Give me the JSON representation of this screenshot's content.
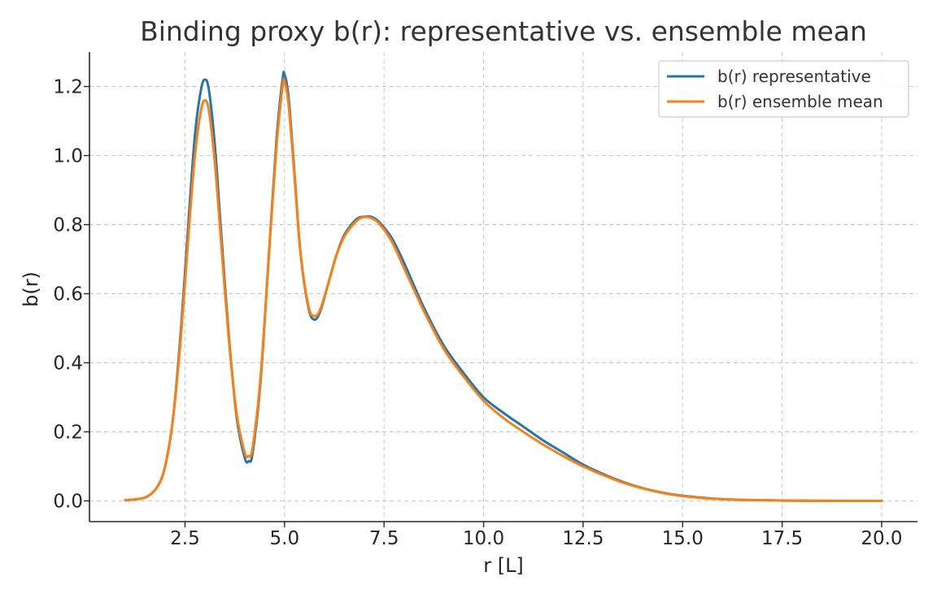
{
  "chart_data": {
    "type": "line",
    "title": "Binding proxy b(r): representative vs. ensemble mean",
    "xlabel": "r [L]",
    "ylabel": "b(r)",
    "xlim": [
      0.1,
      20.9
    ],
    "ylim": [
      -0.06,
      1.3
    ],
    "xticks": [
      2.5,
      5.0,
      7.5,
      10.0,
      12.5,
      15.0,
      17.5,
      20.0
    ],
    "xtick_labels": [
      "2.5",
      "5.0",
      "7.5",
      "10.0",
      "12.5",
      "15.0",
      "17.5",
      "20.0"
    ],
    "yticks": [
      0.0,
      0.2,
      0.4,
      0.6,
      0.8,
      1.0,
      1.2
    ],
    "ytick_labels": [
      "0.0",
      "0.2",
      "0.4",
      "0.6",
      "0.8",
      "1.0",
      "1.2"
    ],
    "grid": true,
    "grid_style": "dashed",
    "legend_position": "top-right",
    "series": [
      {
        "name": "b(r) representative",
        "color": "#1f77b4",
        "x": [
          1.0,
          1.5,
          1.8,
          2.0,
          2.2,
          2.4,
          2.6,
          2.75,
          2.9,
          3.0,
          3.1,
          3.25,
          3.4,
          3.6,
          3.8,
          4.0,
          4.1,
          4.2,
          4.4,
          4.6,
          4.8,
          4.95,
          5.0,
          5.1,
          5.25,
          5.4,
          5.6,
          5.75,
          5.9,
          6.1,
          6.3,
          6.5,
          6.8,
          7.0,
          7.2,
          7.4,
          7.7,
          8.0,
          8.5,
          9.0,
          9.5,
          10.0,
          10.5,
          11.0,
          11.5,
          12.0,
          12.5,
          13.0,
          13.5,
          14.0,
          14.5,
          15.0,
          15.5,
          16.0,
          16.5,
          17.0,
          17.5,
          18.0,
          19.0,
          20.0
        ],
        "y": [
          0.002,
          0.01,
          0.04,
          0.1,
          0.24,
          0.5,
          0.83,
          1.06,
          1.19,
          1.22,
          1.19,
          1.03,
          0.79,
          0.48,
          0.24,
          0.125,
          0.115,
          0.14,
          0.35,
          0.7,
          1.05,
          1.22,
          1.235,
          1.17,
          0.95,
          0.72,
          0.56,
          0.525,
          0.55,
          0.63,
          0.71,
          0.77,
          0.815,
          0.823,
          0.822,
          0.805,
          0.76,
          0.69,
          0.56,
          0.45,
          0.37,
          0.3,
          0.255,
          0.215,
          0.175,
          0.14,
          0.105,
          0.078,
          0.055,
          0.037,
          0.024,
          0.015,
          0.009,
          0.005,
          0.003,
          0.002,
          0.001,
          0.0005,
          0.0001,
          0.0
        ]
      },
      {
        "name": "b(r) ensemble mean",
        "color": "#ff7f0e",
        "x": [
          1.0,
          1.5,
          1.8,
          2.0,
          2.2,
          2.4,
          2.6,
          2.75,
          2.9,
          3.0,
          3.1,
          3.25,
          3.4,
          3.6,
          3.8,
          4.0,
          4.1,
          4.2,
          4.4,
          4.6,
          4.8,
          4.95,
          5.0,
          5.1,
          5.25,
          5.4,
          5.6,
          5.75,
          5.9,
          6.1,
          6.3,
          6.5,
          6.8,
          7.0,
          7.2,
          7.4,
          7.7,
          8.0,
          8.5,
          9.0,
          9.5,
          10.0,
          10.5,
          11.0,
          11.5,
          12.0,
          12.5,
          13.0,
          13.5,
          14.0,
          14.5,
          15.0,
          15.5,
          16.0,
          16.5,
          17.0,
          17.5,
          18.0,
          19.0,
          20.0
        ],
        "y": [
          0.002,
          0.01,
          0.04,
          0.1,
          0.24,
          0.48,
          0.79,
          1.0,
          1.13,
          1.16,
          1.13,
          0.98,
          0.76,
          0.47,
          0.25,
          0.14,
          0.13,
          0.155,
          0.36,
          0.7,
          1.03,
          1.2,
          1.215,
          1.15,
          0.94,
          0.72,
          0.565,
          0.535,
          0.555,
          0.63,
          0.71,
          0.765,
          0.81,
          0.822,
          0.818,
          0.8,
          0.75,
          0.675,
          0.55,
          0.44,
          0.36,
          0.29,
          0.24,
          0.2,
          0.163,
          0.13,
          0.1,
          0.075,
          0.053,
          0.036,
          0.023,
          0.014,
          0.008,
          0.005,
          0.003,
          0.002,
          0.001,
          0.0005,
          0.0001,
          0.0
        ]
      }
    ]
  }
}
